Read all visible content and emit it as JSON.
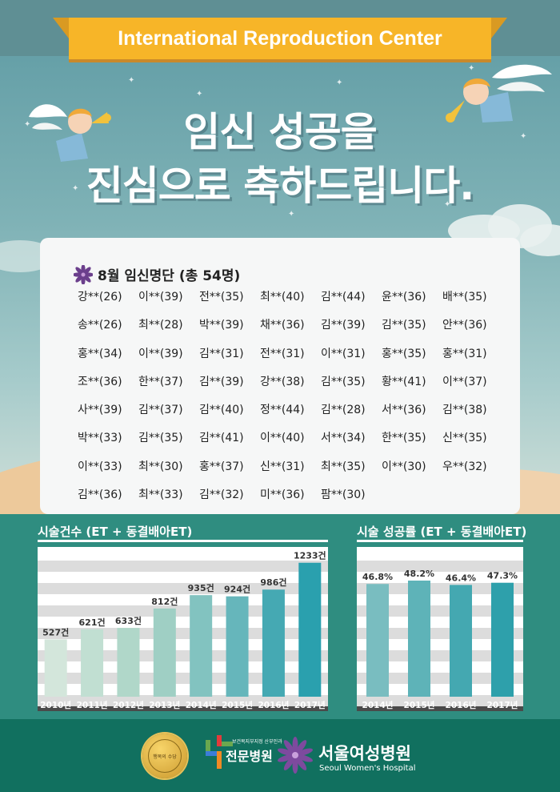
{
  "banner": {
    "title": "International Reproduction Center"
  },
  "headline": {
    "line1": "임신 성공을",
    "line2": "진심으로 축하드립니다."
  },
  "pregnancy_list": {
    "title": "8월 임신명단 (총 54명)",
    "names": [
      "강**(26)",
      "이**(39)",
      "전**(35)",
      "최**(40)",
      "김**(44)",
      "윤**(36)",
      "배**(35)",
      "송**(26)",
      "최**(28)",
      "박**(39)",
      "채**(36)",
      "김**(39)",
      "김**(35)",
      "안**(36)",
      "홍**(34)",
      "이**(39)",
      "김**(31)",
      "전**(31)",
      "이**(31)",
      "홍**(35)",
      "홍**(31)",
      "조**(36)",
      "한**(37)",
      "김**(39)",
      "강**(38)",
      "김**(35)",
      "황**(41)",
      "이**(37)",
      "사**(39)",
      "김**(37)",
      "김**(40)",
      "정**(44)",
      "김**(28)",
      "서**(36)",
      "김**(38)",
      "박**(33)",
      "김**(35)",
      "김**(41)",
      "이**(40)",
      "서**(34)",
      "한**(35)",
      "신**(35)",
      "이**(33)",
      "최**(30)",
      "홍**(37)",
      "신**(31)",
      "최**(35)",
      "이**(30)",
      "우**(32)",
      "김**(36)",
      "최**(33)",
      "김**(32)",
      "미**(36)",
      "팜**(30)"
    ]
  },
  "chart_data": [
    {
      "type": "bar",
      "title": "시술건수 (ET + 동결배아ET)",
      "categories": [
        "2010년",
        "2011년",
        "2012년",
        "2013년",
        "2014년",
        "2015년",
        "2016년",
        "2017년"
      ],
      "values": [
        527,
        621,
        633,
        812,
        935,
        924,
        986,
        1233
      ],
      "data_labels": [
        "527건",
        "621건",
        "633건",
        "812건",
        "935건",
        "924건",
        "986건",
        "1233건"
      ],
      "colors": [
        "#d3e6db",
        "#c1dfd2",
        "#b0d7c9",
        "#9fcfc4",
        "#82c3c0",
        "#66b6bb",
        "#45a9b3",
        "#2aa0ae"
      ],
      "grid": true
    },
    {
      "type": "bar",
      "title": "시술 성공률 (ET + 동결배아ET)",
      "categories": [
        "2014년",
        "2015년",
        "2016년",
        "2017년"
      ],
      "values": [
        46.8,
        48.2,
        46.4,
        47.3
      ],
      "data_labels": [
        "46.8%",
        "48.2%",
        "46.4%",
        "47.3%"
      ],
      "colors": [
        "#79bdc0",
        "#5eb3b8",
        "#44a8b1",
        "#2ea0ab"
      ],
      "grid": true
    }
  ],
  "footer": {
    "badge_text": "행복의 수당",
    "cert_small": "보건복지부지정 산부인과",
    "cert_main": "전문병원",
    "hospital_ko": "서울여성병원",
    "hospital_en": "Seoul Women's Hospital"
  },
  "colors": {
    "banner": "#f7b528",
    "stats_bg": "#2f8d80",
    "footer_bg": "#11705f",
    "flower": "#6b3f8c"
  }
}
